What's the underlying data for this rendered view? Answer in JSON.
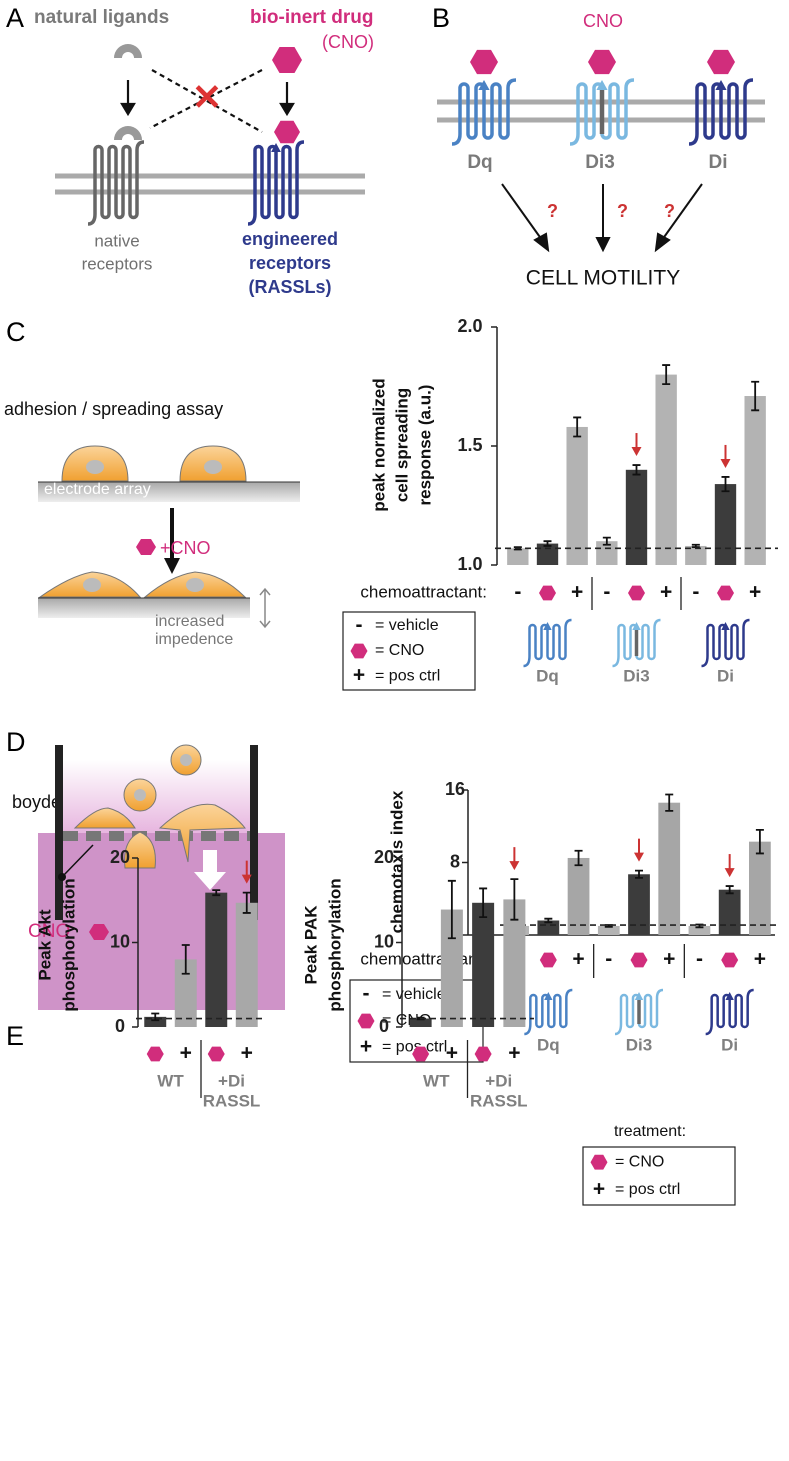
{
  "panels": {
    "A": {
      "label": "A",
      "ligands": "natural ligands",
      "drug": "bio-inert drug",
      "drug_abbrev": "(CNO)",
      "native": [
        "native",
        "receptors"
      ],
      "engineered": [
        "engineered",
        "receptors",
        "(RASSLs)"
      ]
    },
    "B": {
      "label": "B",
      "drug": "CNO",
      "receptors": [
        "Dq",
        "Di3",
        "Di"
      ],
      "question": "?",
      "outcome": "CELL MOTILITY"
    },
    "C": {
      "label": "C",
      "assay": "adhesion / spreading assay",
      "substrate": "electrode array",
      "treatment": "+CNO",
      "readout": [
        "increased",
        "impedence"
      ]
    },
    "D": {
      "label": "D",
      "assay": "boyden chamber assay",
      "drug": "CNO"
    },
    "E": {
      "label": "E"
    }
  },
  "chart_data": [
    {
      "type": "bar",
      "y_label": [
        "peak normalized",
        "cell spreading",
        "response (a.u.)"
      ],
      "x_label": "chemoattractant:",
      "categories": [
        "Dq",
        "Di3",
        "Di"
      ],
      "series": [
        {
          "name": "= vehicle",
          "symbol": "-",
          "color": "#b3b3b3",
          "values": [
            1.07,
            1.1,
            1.08
          ],
          "errors": [
            0.005,
            0.015,
            0.005
          ]
        },
        {
          "name": "= CNO",
          "symbol": null,
          "color": "#3c3c3c",
          "values": [
            1.09,
            1.4,
            1.34
          ],
          "errors": [
            0.01,
            0.02,
            0.03
          ]
        },
        {
          "name": "= pos ctrl",
          "symbol": "+",
          "color": "#b3b3b3",
          "values": [
            1.58,
            1.8,
            1.71
          ],
          "errors": [
            0.04,
            0.04,
            0.06
          ]
        }
      ],
      "ylim": [
        1.0,
        2.0
      ],
      "yticks": [
        {
          "value": 1.0,
          "label": "1.0"
        },
        1.5,
        {
          "value": 2.0,
          "label": "2.0"
        }
      ],
      "reference_line": 1.07
    },
    {
      "type": "bar",
      "y_label": [
        "chemotaxis index"
      ],
      "x_label": "chemoattractant:",
      "categories": [
        "Dq",
        "Di3",
        "Di"
      ],
      "series": [
        {
          "name": "= vehicle",
          "symbol": "-",
          "color": "#b3b3b3",
          "values": [
            1.0,
            1.0,
            1.0
          ],
          "errors": [
            0.15,
            0.1,
            0.15
          ]
        },
        {
          "name": "= CNO",
          "symbol": null,
          "color": "#3c3c3c",
          "values": [
            1.6,
            6.7,
            5.0
          ],
          "errors": [
            0.2,
            0.4,
            0.4
          ]
        },
        {
          "name": "= pos ctrl",
          "symbol": "+",
          "color": "#a6a6a6",
          "values": [
            8.5,
            14.6,
            10.3
          ],
          "errors": [
            0.8,
            0.9,
            1.3
          ]
        }
      ],
      "ylim": [
        0,
        16
      ],
      "yticks": [
        0,
        8,
        16
      ],
      "reference_line": 1.1
    },
    {
      "type": "bar",
      "y_label": [
        "Peak Akt",
        "phosphorylation"
      ],
      "categories": [
        [
          "WT"
        ],
        [
          "+Di",
          "RASSL"
        ]
      ],
      "series": [
        {
          "name": "= CNO",
          "symbol": null,
          "color": "#3c3c3c",
          "values": [
            1.2,
            15.9
          ],
          "errors": [
            0.4,
            0.3
          ]
        },
        {
          "name": "= pos ctrl",
          "symbol": "+",
          "color": "#a8a8a8",
          "values": [
            8.0,
            14.7
          ],
          "errors": [
            1.7,
            1.2
          ]
        }
      ],
      "ylim": [
        0,
        20
      ],
      "yticks": [
        0,
        10,
        20
      ],
      "reference_line": 1.0
    },
    {
      "type": "bar",
      "y_label": [
        "Peak PAK",
        "phosphorylation"
      ],
      "legend_title": "treatment:",
      "categories": [
        [
          "WT"
        ],
        [
          "+Di",
          "RASSL"
        ]
      ],
      "series": [
        {
          "name": "= CNO",
          "symbol": null,
          "color": "#3c3c3c",
          "values": [
            1.0,
            14.7
          ],
          "errors": [
            0.1,
            1.7
          ]
        },
        {
          "name": "= pos ctrl",
          "symbol": "+",
          "color": "#a8a8a8",
          "values": [
            13.9,
            15.1
          ],
          "errors": [
            3.4,
            2.4
          ]
        }
      ],
      "ylim": [
        0,
        20
      ],
      "yticks": [
        0,
        10,
        20
      ],
      "reference_line": 1.0
    }
  ]
}
